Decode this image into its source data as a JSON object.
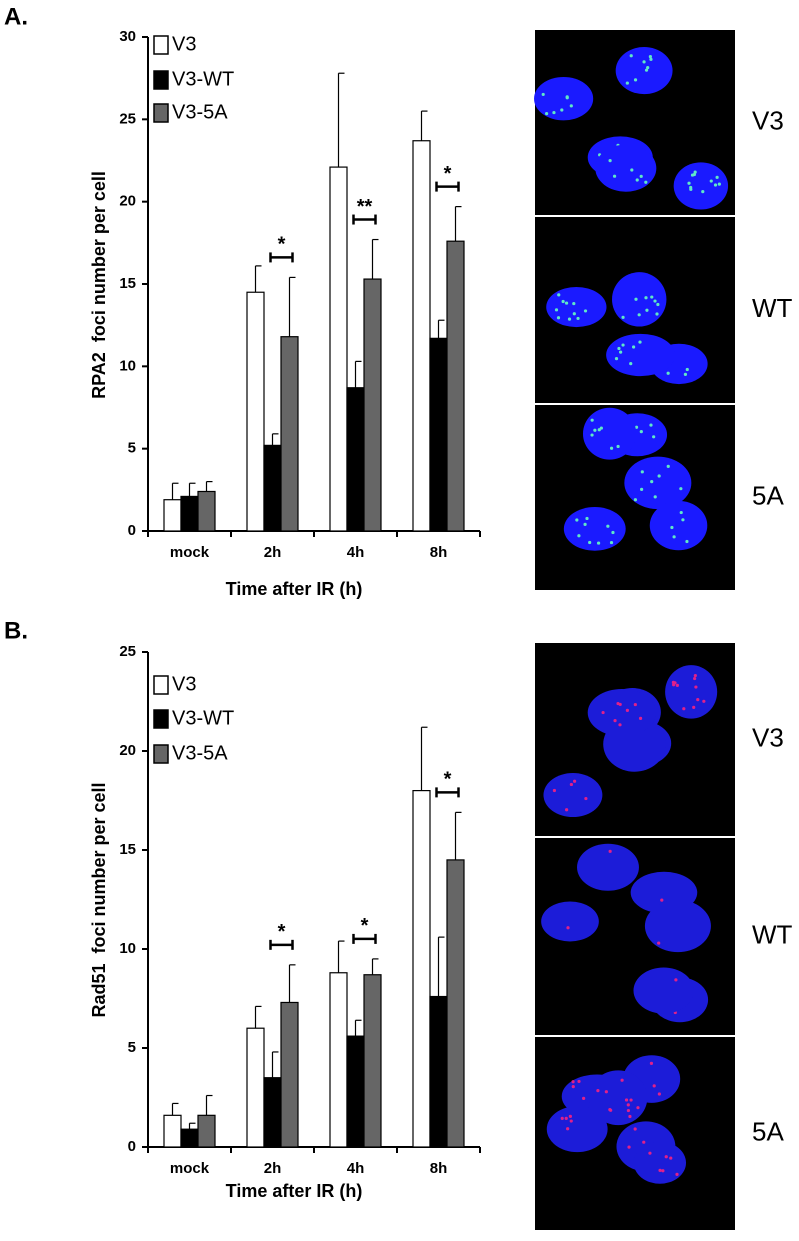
{
  "chart_data": [
    {
      "type": "bar",
      "panel": "A.",
      "x_label": "Time after IR (h)",
      "y_label": "RPA2  foci number per cell",
      "categories": [
        "mock",
        "2h",
        "4h",
        "8h"
      ],
      "series": [
        {
          "name": "V3",
          "color": "#ffffff",
          "values": [
            1.9,
            14.5,
            22.1,
            23.7
          ],
          "errors": [
            1.0,
            1.6,
            5.7,
            1.8
          ]
        },
        {
          "name": "V3-WT",
          "color": "#000000",
          "values": [
            2.1,
            5.2,
            8.7,
            11.7
          ],
          "errors": [
            0.8,
            0.7,
            1.6,
            1.1
          ]
        },
        {
          "name": "V3-5A",
          "color": "#666666",
          "values": [
            2.4,
            11.8,
            15.3,
            17.6
          ],
          "errors": [
            0.6,
            3.6,
            2.4,
            2.1
          ]
        }
      ],
      "ylim": [
        0,
        30
      ],
      "yticks": [
        0,
        5,
        10,
        15,
        20,
        25,
        30
      ],
      "legend": "upper left",
      "annotations": [
        {
          "text": "*",
          "category": "2h"
        },
        {
          "text": "**",
          "category": "4h"
        },
        {
          "text": "*",
          "category": "8h"
        }
      ],
      "image_labels": [
        "V3",
        "WT",
        "5A"
      ]
    },
    {
      "type": "bar",
      "panel": "B.",
      "x_label": "Time after IR (h)",
      "y_label": "Rad51  foci number per cell",
      "categories": [
        "mock",
        "2h",
        "4h",
        "8h"
      ],
      "series": [
        {
          "name": "V3",
          "color": "#ffffff",
          "values": [
            1.6,
            6.0,
            8.8,
            18.0
          ],
          "errors": [
            0.6,
            1.1,
            1.6,
            3.2
          ]
        },
        {
          "name": "V3-WT",
          "color": "#000000",
          "values": [
            0.9,
            3.5,
            5.6,
            7.6
          ],
          "errors": [
            0.3,
            1.3,
            0.8,
            3.0
          ]
        },
        {
          "name": "V3-5A",
          "color": "#666666",
          "values": [
            1.6,
            7.3,
            8.7,
            14.5
          ],
          "errors": [
            1.0,
            1.9,
            0.8,
            2.4
          ]
        }
      ],
      "ylim": [
        0,
        25
      ],
      "yticks": [
        0,
        5,
        10,
        15,
        20,
        25
      ],
      "legend": "upper left",
      "annotations": [
        {
          "text": "*",
          "category": "2h"
        },
        {
          "text": "*",
          "category": "4h"
        },
        {
          "text": "*",
          "category": "8h"
        }
      ],
      "image_labels": [
        "V3",
        "WT",
        "5A"
      ]
    }
  ]
}
